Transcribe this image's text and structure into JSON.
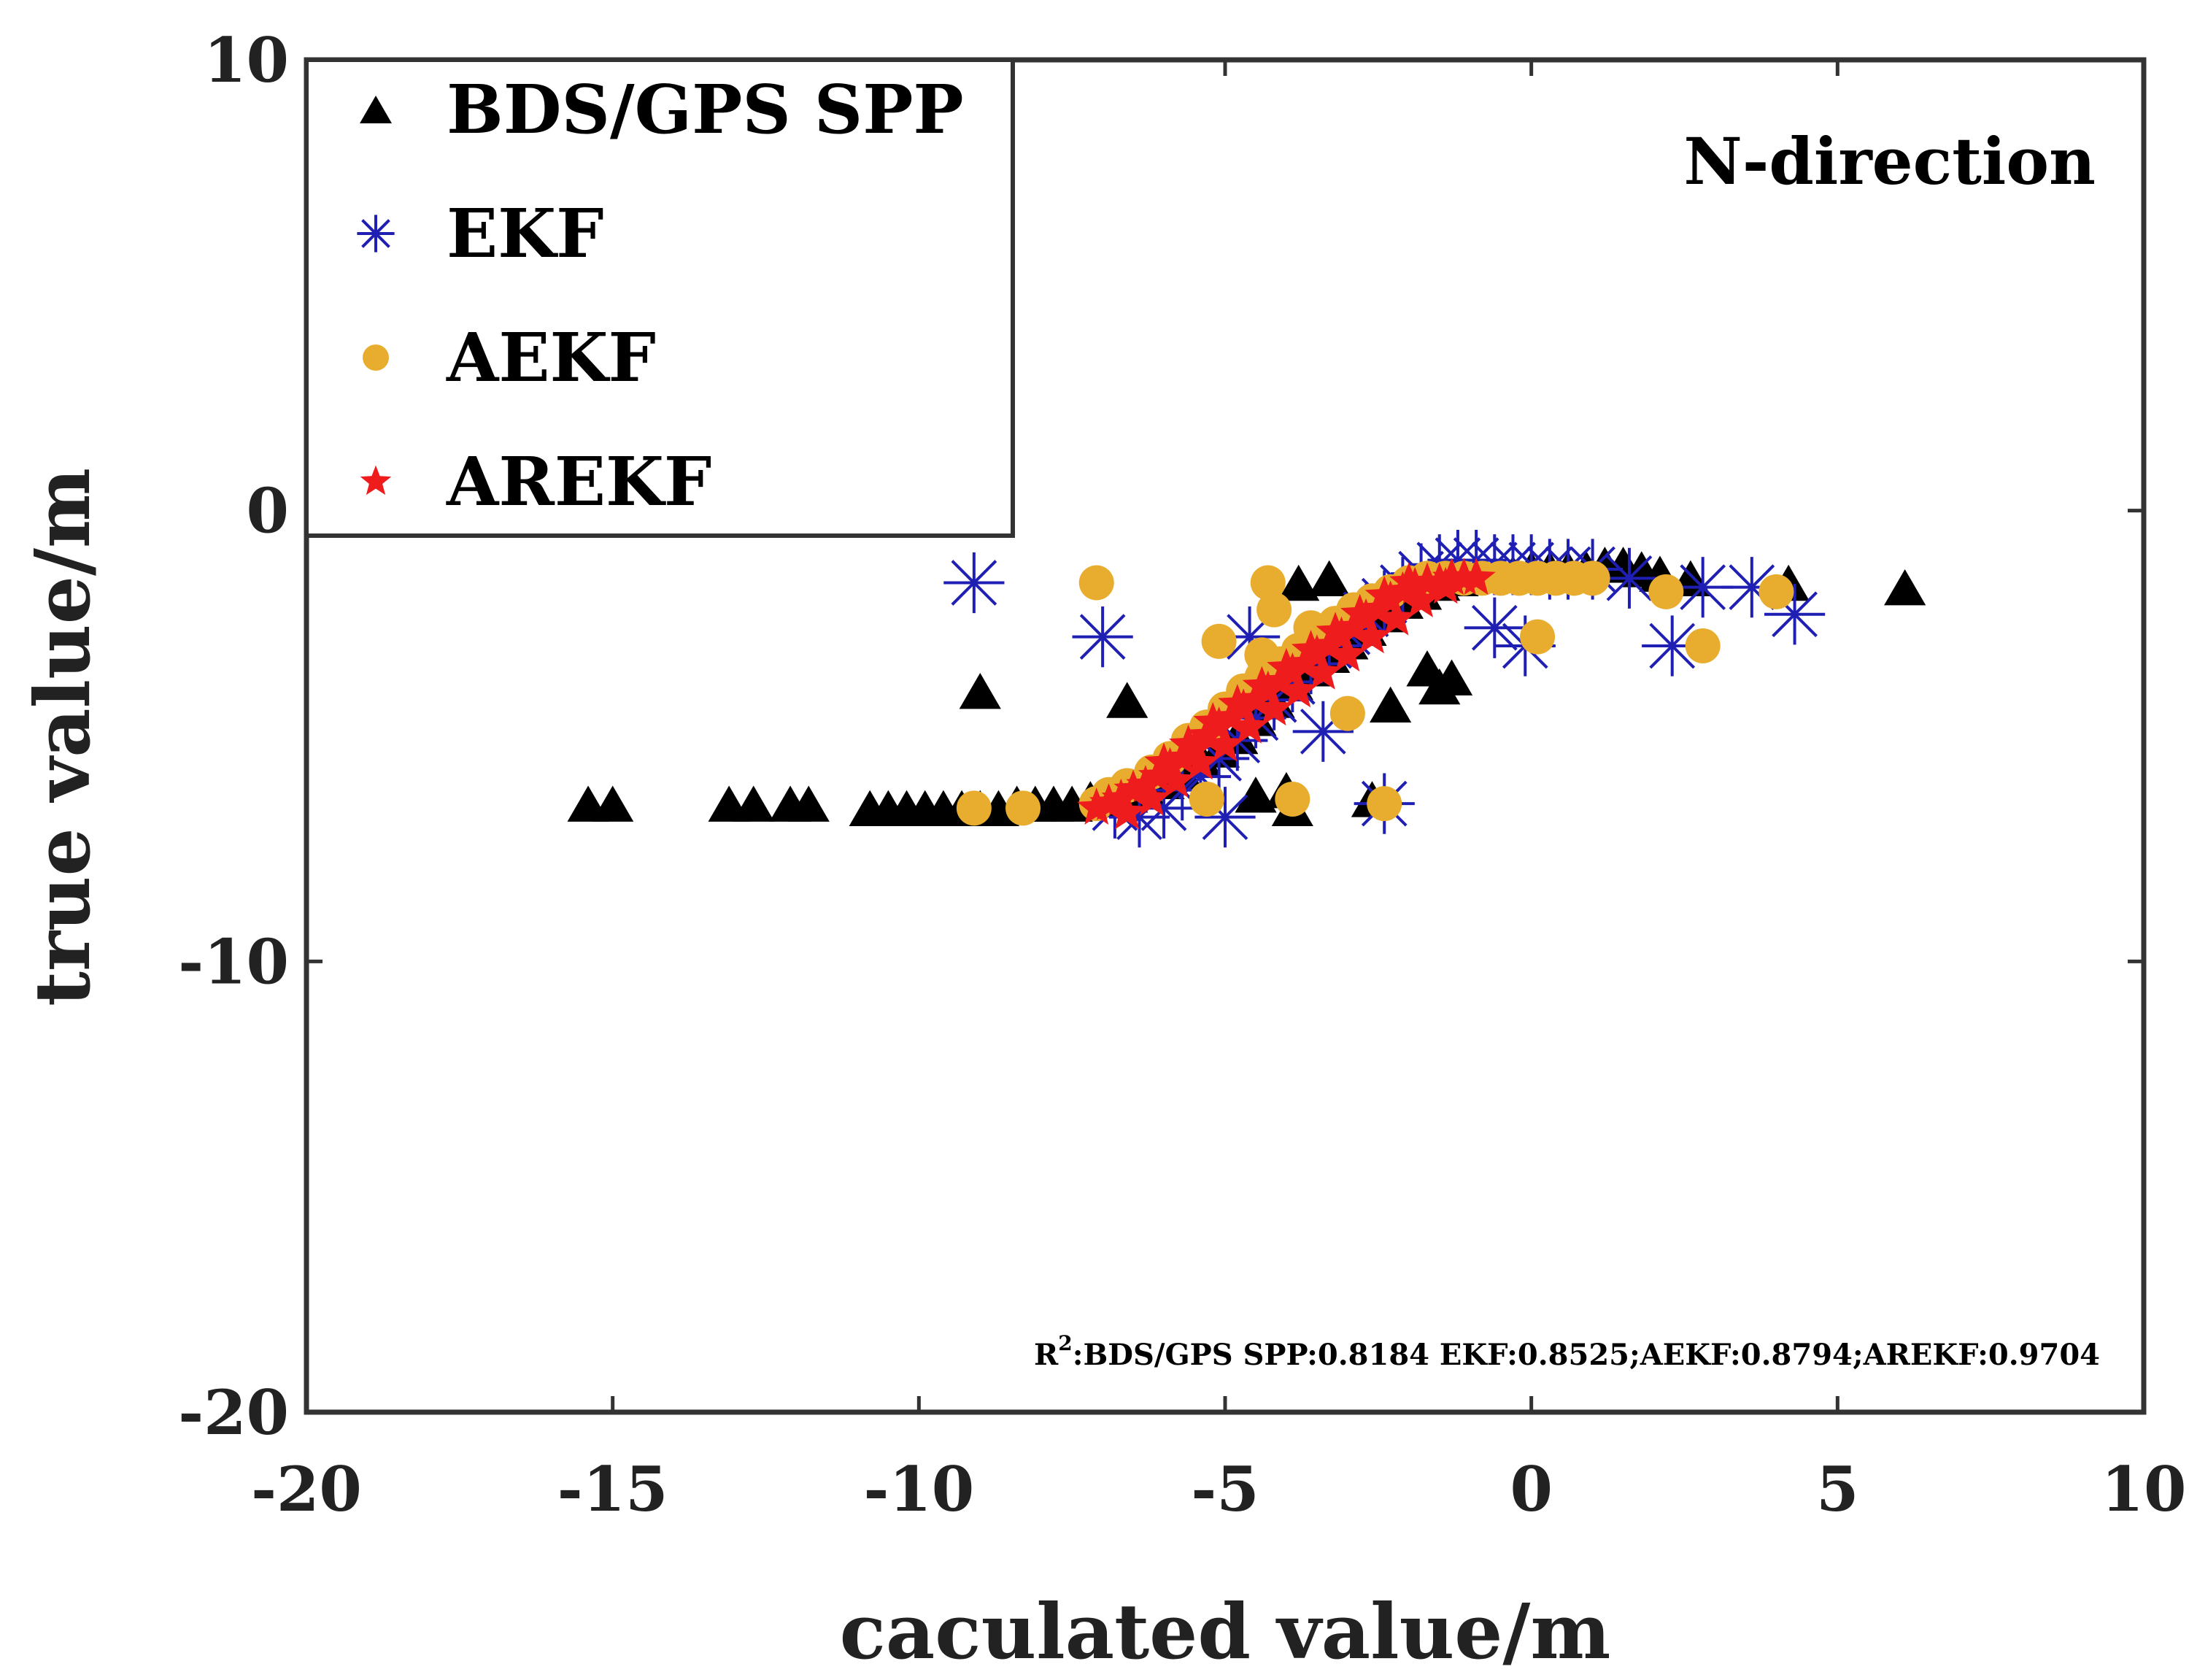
{
  "chart_data": {
    "type": "scatter",
    "title": "",
    "xlabel": "caculated value/m",
    "ylabel": "true value/m",
    "xlim": [
      -20,
      10
    ],
    "ylim": [
      -20,
      10
    ],
    "xticks": [
      -20,
      -15,
      -10,
      -5,
      0,
      5,
      10
    ],
    "xtick_labels": [
      "-20",
      "-15",
      "-10",
      "-5",
      "0",
      "5",
      "10"
    ],
    "yticks": [
      -20,
      -10,
      0,
      10
    ],
    "ytick_labels": [
      "-20",
      "-10",
      "0",
      "10"
    ],
    "grid": false,
    "legend_position": "top-left",
    "annotation": "N-direction",
    "r2_text": {
      "prefix": "R",
      "superscript": "2",
      "rest": ":BDS/GPS SPP:0.8184 EKF:0.8525;AEKF:0.8794;AREKF:0.9704"
    },
    "series": [
      {
        "name": "BDS/GPS SPP",
        "marker": "triangle",
        "color": "#000000",
        "x": [
          -15.4,
          -15.0,
          -13.1,
          -12.7,
          -12.1,
          -11.8,
          -10.8,
          -10.5,
          -10.2,
          -9.9,
          -9.6,
          -9.3,
          -9.0,
          -8.7,
          -8.4,
          -8.1,
          -7.8,
          -7.5,
          -7.2,
          -6.9,
          -6.6,
          -6.3,
          -6.0,
          -5.7,
          -5.4,
          -5.1,
          -4.8,
          -4.5,
          -4.2,
          -3.9,
          -3.6,
          -3.3,
          -3.0,
          -2.7,
          -2.4,
          -2.1,
          -1.8,
          -1.5,
          -1.2,
          -0.9,
          -0.6,
          -0.3,
          0.0,
          0.3,
          0.6,
          0.9,
          1.2,
          1.5,
          1.8,
          2.1,
          -9.0,
          -6.6,
          -3.8,
          -3.3,
          -1.7,
          -1.5,
          -2.3,
          -4.0,
          -3.9,
          -2.6,
          6.1,
          4.2,
          2.6,
          -4.5,
          -1.3
        ],
        "y": [
          -6.5,
          -6.5,
          -6.5,
          -6.5,
          -6.5,
          -6.5,
          -6.6,
          -6.6,
          -6.6,
          -6.6,
          -6.6,
          -6.6,
          -6.6,
          -6.6,
          -6.5,
          -6.5,
          -6.5,
          -6.5,
          -6.4,
          -6.4,
          -6.3,
          -6.2,
          -6.0,
          -5.8,
          -5.5,
          -5.3,
          -5.0,
          -4.6,
          -4.2,
          -3.8,
          -3.5,
          -3.2,
          -2.9,
          -2.6,
          -2.3,
          -2.0,
          -1.8,
          -1.6,
          -1.5,
          -1.4,
          -1.4,
          -1.4,
          -1.3,
          -1.3,
          -1.3,
          -1.3,
          -1.2,
          -1.2,
          -1.3,
          -1.4,
          -4.0,
          -4.2,
          -1.6,
          -1.5,
          -3.5,
          -3.9,
          -4.3,
          -6.2,
          -6.6,
          -6.4,
          -1.7,
          -1.6,
          -1.5,
          -6.3,
          -3.7
        ]
      },
      {
        "name": "EKF",
        "marker": "asterisk",
        "color": "#1f1fb4",
        "x": [
          -9.1,
          -7.0,
          -6.8,
          -6.4,
          -6.0,
          -5.7,
          -5.4,
          -5.1,
          -4.8,
          -4.5,
          -4.2,
          -3.9,
          -3.6,
          -3.3,
          -3.0,
          -2.7,
          -2.4,
          -2.1,
          -1.8,
          -1.5,
          -1.2,
          -0.9,
          -0.6,
          -0.3,
          0.0,
          0.3,
          0.6,
          1.0,
          1.6,
          2.3,
          2.8,
          3.6,
          4.3,
          -5.0,
          -2.4,
          -0.6,
          -4.6,
          -3.4,
          -0.1
        ],
        "y": [
          -1.6,
          -2.8,
          -6.6,
          -6.8,
          -6.6,
          -6.2,
          -5.9,
          -5.5,
          -5.1,
          -4.6,
          -4.2,
          -3.8,
          -3.4,
          -3.0,
          -2.7,
          -2.3,
          -2.0,
          -1.7,
          -1.4,
          -1.2,
          -1.1,
          -1.1,
          -1.2,
          -1.2,
          -1.2,
          -1.3,
          -1.3,
          -1.3,
          -1.5,
          -3.0,
          -1.7,
          -1.7,
          -2.3,
          -6.8,
          -6.5,
          -2.6,
          -2.8,
          -4.9,
          -3.0
        ]
      },
      {
        "name": "AEKF",
        "marker": "circle",
        "color": "#e8ad2e",
        "x": [
          -9.1,
          -8.3,
          -7.1,
          -6.9,
          -6.6,
          -6.2,
          -5.9,
          -5.6,
          -5.3,
          -5.0,
          -4.7,
          -4.4,
          -4.1,
          -3.8,
          -3.5,
          -3.2,
          -2.9,
          -2.6,
          -2.3,
          -2.0,
          -1.7,
          -1.4,
          -1.1,
          -0.8,
          -0.5,
          -0.2,
          0.1,
          0.4,
          0.7,
          1.0,
          -7.1,
          -5.1,
          -4.3,
          -4.2,
          -3.0,
          0.1,
          2.2,
          2.8,
          4.0,
          -5.3,
          -3.9,
          -2.4,
          -4.4,
          -3.6
        ],
        "y": [
          -6.6,
          -6.6,
          -6.5,
          -6.3,
          -6.1,
          -5.8,
          -5.5,
          -5.1,
          -4.8,
          -4.4,
          -4.0,
          -3.7,
          -3.4,
          -3.1,
          -2.8,
          -2.5,
          -2.2,
          -2.0,
          -1.8,
          -1.6,
          -1.5,
          -1.5,
          -1.5,
          -1.5,
          -1.5,
          -1.5,
          -1.5,
          -1.5,
          -1.5,
          -1.5,
          -1.6,
          -2.9,
          -1.6,
          -2.2,
          -4.5,
          -2.8,
          -1.8,
          -3.0,
          -1.8,
          -6.4,
          -6.4,
          -6.5,
          -3.2,
          -2.6
        ]
      },
      {
        "name": "AREKF",
        "marker": "star",
        "color": "#ee1c1c",
        "x": [
          -7.1,
          -6.9,
          -6.7,
          -6.5,
          -6.3,
          -6.1,
          -5.9,
          -5.7,
          -5.5,
          -5.3,
          -5.1,
          -4.9,
          -4.7,
          -4.5,
          -4.3,
          -4.1,
          -3.9,
          -3.7,
          -3.5,
          -3.3,
          -3.1,
          -2.9,
          -2.7,
          -2.5,
          -2.3,
          -2.1,
          -1.9,
          -1.7,
          -1.5,
          -1.3,
          -1.1,
          -0.9,
          -6.6,
          -6.2,
          -5.8,
          -5.4,
          -5.0,
          -4.6,
          -4.2,
          -3.8,
          -3.4,
          -3.0,
          -2.6,
          -2.2,
          -1.8,
          -1.4,
          -6.0,
          -5.6,
          -5.2,
          -4.8,
          -4.4,
          -4.0,
          -3.6,
          -3.2,
          -2.8,
          -2.4,
          -2.0
        ],
        "y": [
          -6.6,
          -6.5,
          -6.4,
          -6.2,
          -6.1,
          -5.9,
          -5.7,
          -5.5,
          -5.3,
          -5.0,
          -4.8,
          -4.6,
          -4.4,
          -4.2,
          -4.0,
          -3.8,
          -3.6,
          -3.4,
          -3.2,
          -3.0,
          -2.8,
          -2.6,
          -2.4,
          -2.2,
          -2.0,
          -1.8,
          -1.7,
          -1.6,
          -1.6,
          -1.5,
          -1.5,
          -1.5,
          -6.7,
          -6.4,
          -6.0,
          -5.6,
          -5.2,
          -4.8,
          -4.4,
          -4.0,
          -3.6,
          -3.2,
          -2.8,
          -2.4,
          -2.0,
          -1.7,
          -5.6,
          -5.2,
          -4.7,
          -4.3,
          -3.9,
          -3.5,
          -3.1,
          -2.7,
          -2.3,
          -1.9,
          -1.6
        ]
      }
    ]
  }
}
